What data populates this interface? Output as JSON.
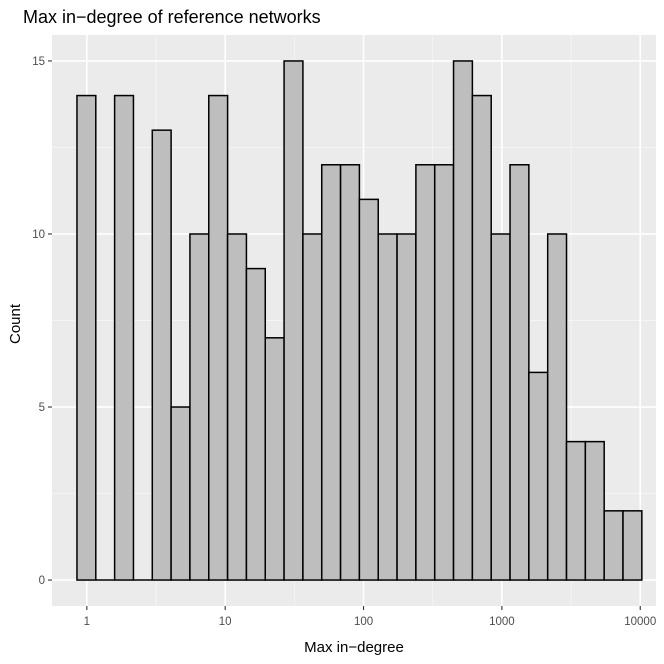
{
  "chart_data": {
    "type": "bar",
    "title": "Max in−degree of reference networks",
    "xlabel": "Max in−degree",
    "ylabel": "Count",
    "x_scale": "log10",
    "x_ticks": [
      1,
      10,
      100,
      1000,
      10000
    ],
    "x_tick_labels": [
      "1",
      "10",
      "100",
      "1000",
      "10000"
    ],
    "y_ticks": [
      0,
      5,
      10,
      15
    ],
    "y_tick_labels": [
      "0",
      "5",
      "10",
      "15"
    ],
    "xlim": [
      0.56,
      13000
    ],
    "ylim": [
      -0.75,
      15.75
    ],
    "grid": true,
    "bins": 30,
    "bin_edges_log10": [
      -0.0714,
      0.0647,
      0.2008,
      0.3369,
      0.473,
      0.6091,
      0.7452,
      0.8813,
      1.0174,
      1.1535,
      1.2896,
      1.4257,
      1.5618,
      1.6979,
      1.834,
      1.9701,
      2.1062,
      2.2423,
      2.3784,
      2.5145,
      2.6506,
      2.7867,
      2.9228,
      3.0589,
      3.195,
      3.3311,
      3.4672,
      3.6033,
      3.7394,
      3.8755,
      4.0116
    ],
    "counts": [
      14,
      0,
      14,
      0,
      13,
      5,
      10,
      14,
      10,
      9,
      7,
      15,
      10,
      12,
      12,
      11,
      10,
      10,
      12,
      12,
      15,
      14,
      10,
      12,
      6,
      10,
      4,
      4,
      2,
      2
    ],
    "colors": {
      "panel": "#ebebeb",
      "grid_major": "#ffffff",
      "grid_minor": "#f5f5f5",
      "bar_fill": "#bebebe",
      "bar_stroke": "#000000",
      "tick_text": "#4d4d4d"
    }
  }
}
